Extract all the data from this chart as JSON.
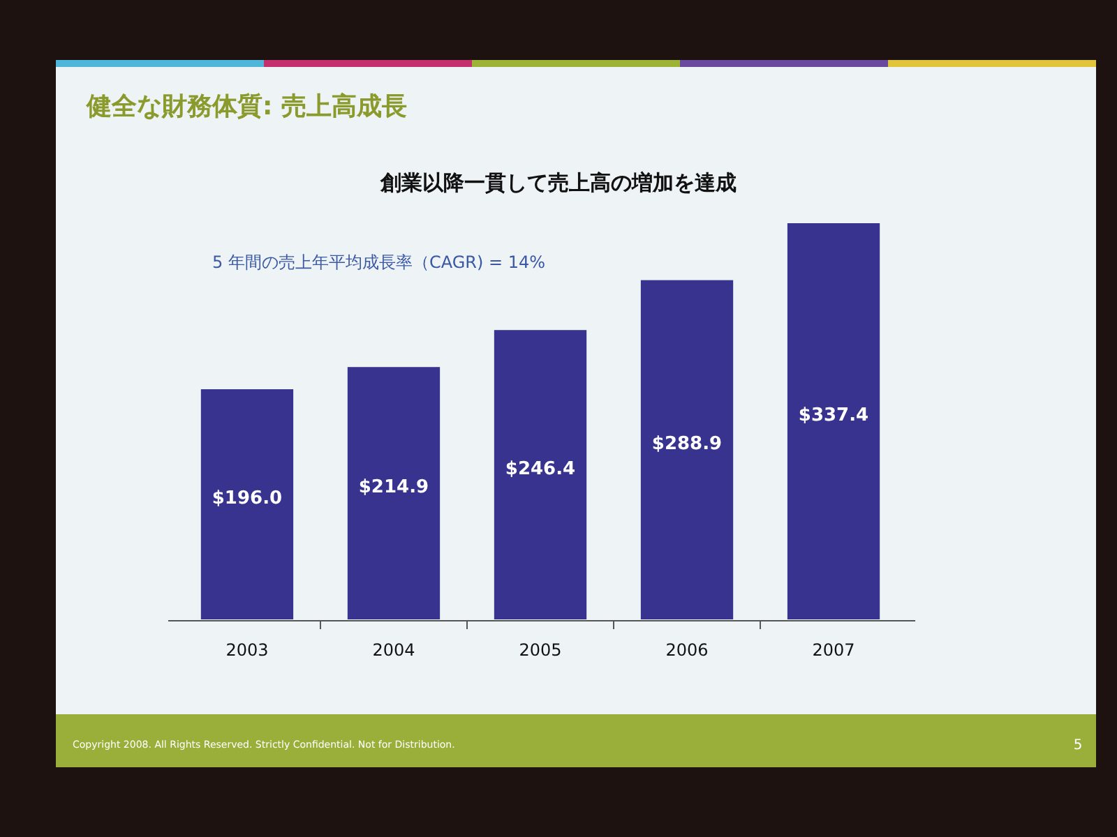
{
  "chart_data": {
    "type": "bar",
    "title": "健全な財務体質: 売上高成長",
    "subtitle": "創業以降一貫して売上高の増加を達成",
    "categories": [
      "2003",
      "2004",
      "2005",
      "2006",
      "2007"
    ],
    "values": [
      196.0,
      214.9,
      246.4,
      288.9,
      337.4
    ],
    "color": "#37338f",
    "value_labels": [
      "$196.0",
      "$214.9",
      "$246.4",
      "$288.9",
      "$337.4"
    ],
    "annotations": [
      "5 年間の売上年平均成長率（CAGR) = 14%",
      "Copyright 2008. All Rights Reserved. Strictly Confidential. Not for Distribution.",
      "5"
    ]
  }
}
